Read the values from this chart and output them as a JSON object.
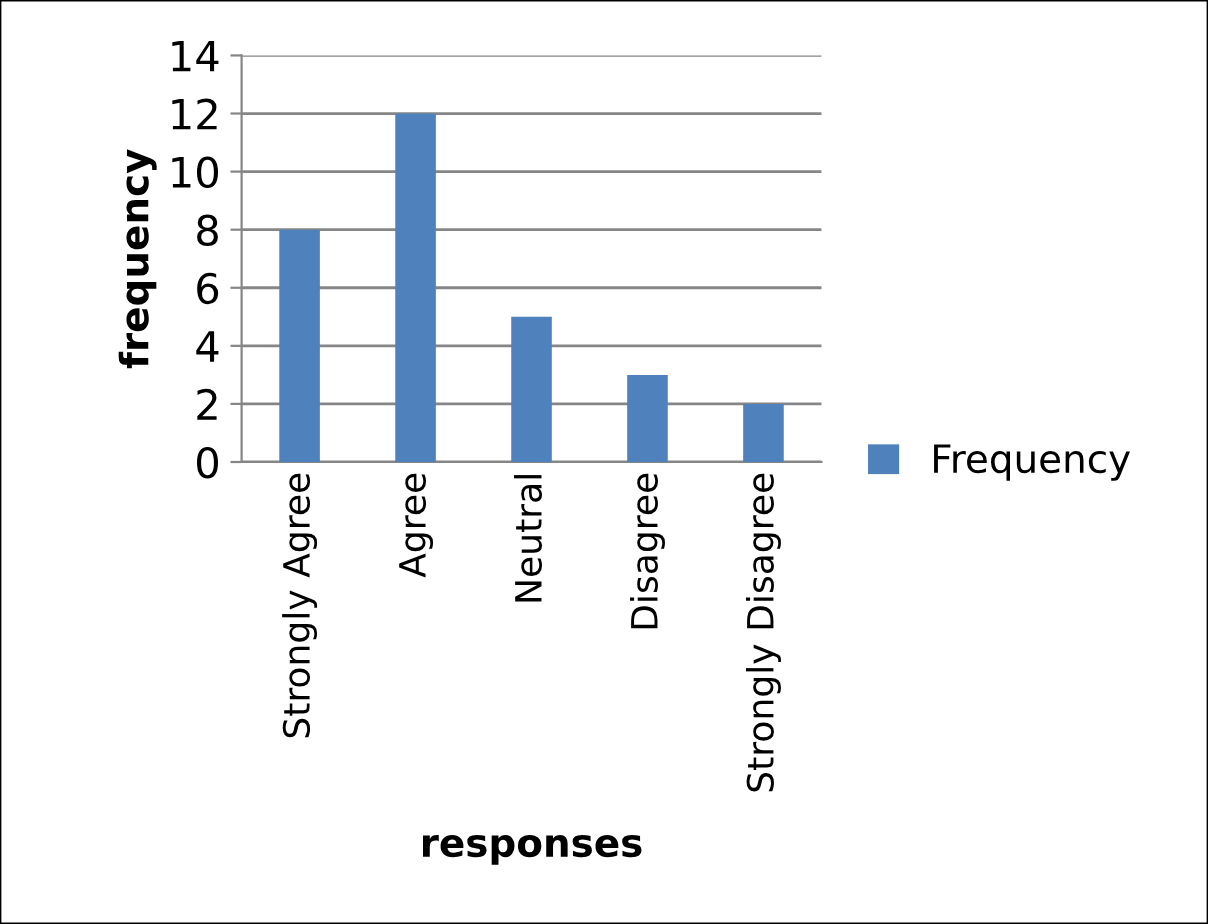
{
  "chart_data": {
    "type": "bar",
    "xlabel": "responses",
    "ylabel": "frequency",
    "categories": [
      "Strongly Agree",
      "Agree",
      "Neutral",
      "Disagree",
      "Strongly Disagree"
    ],
    "series": [
      {
        "name": "Frequency",
        "color": "#4f81bd",
        "values": [
          8,
          12,
          5,
          3,
          2
        ]
      }
    ],
    "ylim": [
      0,
      14
    ],
    "yticks": [
      0,
      2,
      4,
      6,
      8,
      10,
      12,
      14
    ],
    "grid": "y",
    "legend": "right"
  }
}
